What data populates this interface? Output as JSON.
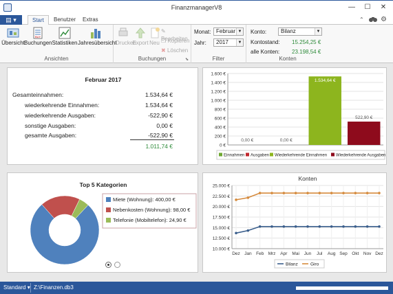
{
  "window": {
    "title": "FinanzmanagerV8",
    "minimize": "—",
    "maximize": "☐",
    "close": "✕"
  },
  "tabs": [
    {
      "label": "Start"
    },
    {
      "label": "Benutzer"
    },
    {
      "label": "Extras"
    }
  ],
  "ribbon": {
    "ansichten": {
      "label": "Ansichten",
      "buttons": [
        "Übersicht",
        "Buchungen",
        "Statistiken",
        "Jahresübersicht"
      ]
    },
    "buchungen": {
      "label": "Buchungen",
      "buttons": [
        "Drucken",
        "Export",
        "Neu"
      ],
      "small": [
        "Bearbeiten",
        "Kopieren",
        "Löschen"
      ]
    },
    "filter": {
      "label": "Filter",
      "monat_label": "Monat:",
      "monat_value": "Februar",
      "jahr_label": "Jahr:",
      "jahr_value": "2017"
    },
    "konten": {
      "label": "Konten",
      "konto_label": "Konto:",
      "konto_value": "Bilanz",
      "kontostand_label": "Kontostand:",
      "kontostand_value": "15.254,25 €",
      "alle_label": "alle Konten:",
      "alle_value": "23.198,54 €"
    }
  },
  "summary": {
    "title": "Februar 2017",
    "rows": [
      {
        "label": "Gesamteinnahmen:",
        "value": "1.534,64 €"
      },
      {
        "label": "wiederkehrende Einnahmen:",
        "value": "1.534,64 €"
      },
      {
        "label": "wiederkehrende Ausgaben:",
        "value": "-522,90 €"
      },
      {
        "label": "sonstige Ausgaben:",
        "value": "0,00 €"
      },
      {
        "label": "gesamte Ausgaben:",
        "value": "-522,90 €"
      }
    ],
    "total": "1.011,74 €"
  },
  "chart_data": [
    {
      "type": "bar",
      "categories": [
        "Einnahmen",
        "Ausgaben",
        "Wiederkehrende Einnahmen",
        "Wiederkehrende Ausgaben"
      ],
      "values": [
        0,
        0,
        1534.64,
        522.9
      ],
      "data_labels": [
        "0,00 €",
        "0,00 €",
        "1.534,64 €",
        "522,90 €"
      ],
      "colors": [
        "#6fa832",
        "#c0282d",
        "#8db51e",
        "#8e0b1c"
      ],
      "ylim": [
        0,
        1600
      ],
      "yticks": [
        0,
        200,
        400,
        600,
        800,
        1000,
        1200,
        1400,
        1600
      ],
      "ytick_labels": [
        "0 €",
        "200 €",
        "400 €",
        "600 €",
        "800 €",
        "1.000 €",
        "1.200 €",
        "1.400 €",
        "1.600 €"
      ],
      "legend": "bottom",
      "grid": true
    },
    {
      "type": "pie",
      "title": "Top 5 Kategorien",
      "slices": [
        {
          "name": "Miete (Wohnung): 400,00 €",
          "value": 400,
          "color": "#4f81bd"
        },
        {
          "name": "Nebenkosten (Wohnung): 98,00 €",
          "value": 98,
          "color": "#c0504d"
        },
        {
          "name": "Telefonie (Mobiltelefon): 24,90 €",
          "value": 24.9,
          "color": "#9bbb59"
        }
      ],
      "legend": "right",
      "donut": true
    },
    {
      "type": "line",
      "title": "Konten",
      "categories": [
        "Dez",
        "Jan",
        "Feb",
        "Mrz",
        "Apr",
        "Mai",
        "Jun",
        "Jul",
        "Aug",
        "Sep",
        "Okt",
        "Nov",
        "Dez"
      ],
      "series": [
        {
          "name": "Bilanz",
          "values": [
            13700,
            14300,
            15254,
            15254,
            15254,
            15254,
            15254,
            15254,
            15254,
            15254,
            15254,
            15254,
            15254
          ],
          "color": "#3a5e8c"
        },
        {
          "name": "Giro",
          "values": [
            21600,
            22100,
            23198,
            23198,
            23198,
            23198,
            23198,
            23198,
            23198,
            23198,
            23198,
            23198,
            23198
          ],
          "color": "#d58a3c"
        }
      ],
      "ylim": [
        10000,
        25000
      ],
      "yticks": [
        10000,
        12500,
        15000,
        17500,
        20000,
        22500,
        25000
      ],
      "ytick_labels": [
        "10.000 €",
        "12.500 €",
        "15.000 €",
        "17.500 €",
        "20.000 €",
        "22.500 €",
        "25.000 €"
      ],
      "legend": "bottom",
      "grid": true
    }
  ],
  "status": {
    "profile": "Standard",
    "file": "Z:\\Finanzen.db3"
  }
}
